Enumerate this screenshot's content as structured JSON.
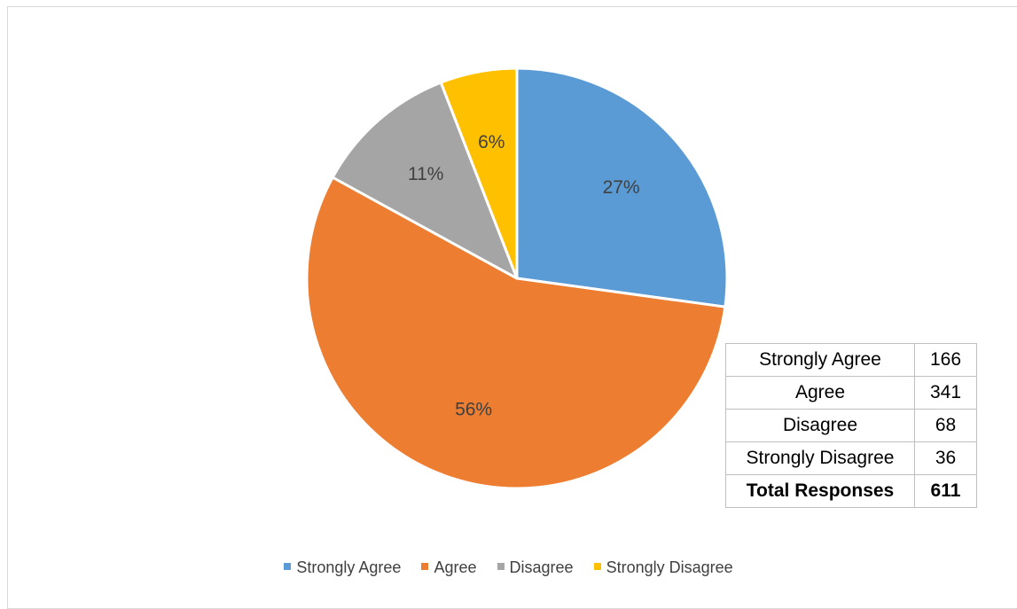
{
  "chart_data": {
    "type": "pie",
    "categories": [
      "Strongly Agree",
      "Agree",
      "Disagree",
      "Strongly Disagree"
    ],
    "values": [
      166,
      341,
      68,
      36
    ],
    "percent_labels": [
      "27%",
      "56%",
      "11%",
      "6%"
    ],
    "colors": [
      "#5b9bd5",
      "#ed7d31",
      "#a5a5a5",
      "#ffc000"
    ],
    "legend_position": "bottom",
    "title": ""
  },
  "table": {
    "rows": [
      {
        "label": "Strongly Agree",
        "value": "166"
      },
      {
        "label": "Agree",
        "value": "341"
      },
      {
        "label": "Disagree",
        "value": "68"
      },
      {
        "label": "Strongly Disagree",
        "value": "36"
      }
    ],
    "total": {
      "label": "Total Responses",
      "value": "611"
    }
  }
}
